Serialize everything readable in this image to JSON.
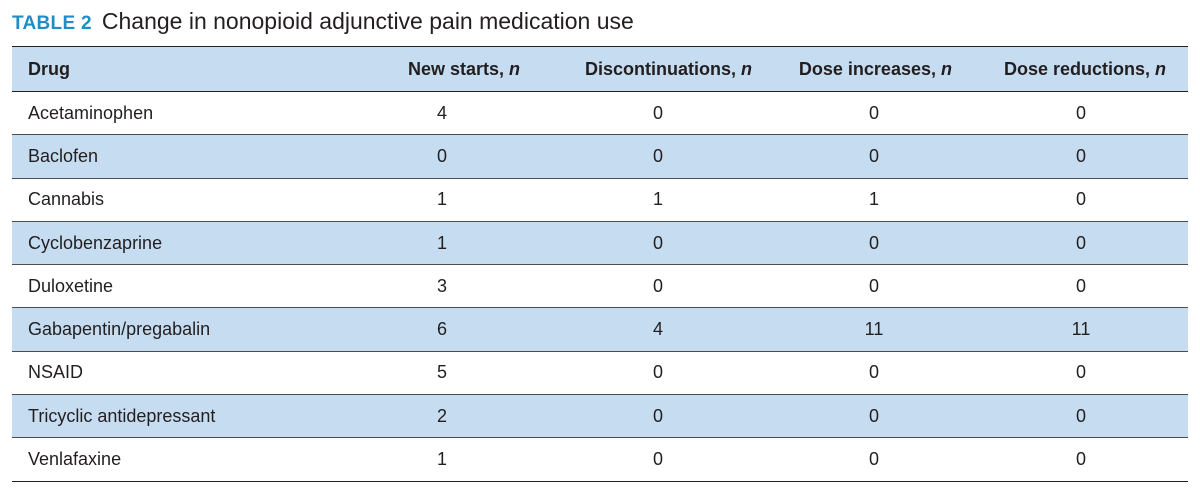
{
  "caption": {
    "label": "TABLE 2",
    "title": "Change in nonopioid adjunctive pain medication use"
  },
  "headers": [
    {
      "text": "Drug",
      "italic": ""
    },
    {
      "text": "New starts, ",
      "italic": "n"
    },
    {
      "text": "Discontinuations, ",
      "italic": "n"
    },
    {
      "text": "Dose increases, ",
      "italic": "n"
    },
    {
      "text": "Dose reductions, ",
      "italic": "n"
    }
  ],
  "rows": [
    [
      "Acetaminophen",
      "4",
      "0",
      "0",
      "0"
    ],
    [
      "Baclofen",
      "0",
      "0",
      "0",
      "0"
    ],
    [
      "Cannabis",
      "1",
      "1",
      "1",
      "0"
    ],
    [
      "Cyclobenzaprine",
      "1",
      "0",
      "0",
      "0"
    ],
    [
      "Duloxetine",
      "3",
      "0",
      "0",
      "0"
    ],
    [
      "Gabapentin/pregabalin",
      "6",
      "4",
      "11",
      "11"
    ],
    [
      "NSAID",
      "5",
      "0",
      "0",
      "0"
    ],
    [
      "Tricyclic antidepressant",
      "2",
      "0",
      "0",
      "0"
    ],
    [
      "Venlafaxine",
      "1",
      "0",
      "0",
      "0"
    ]
  ]
}
